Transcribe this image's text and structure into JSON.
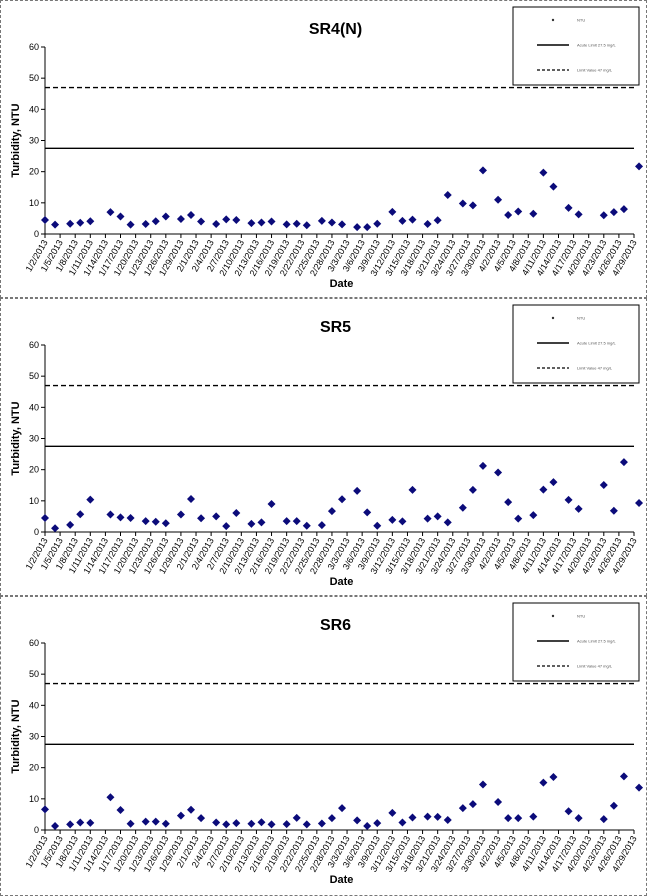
{
  "colors": {
    "marker": "#0b0b7a",
    "line": "#000000"
  },
  "chart_data": [
    {
      "type": "scatter",
      "title": "SR4(N)",
      "xlabel": "Date",
      "ylabel": "Turbidity, NTU",
      "ylim": [
        0,
        60
      ],
      "yticks": [
        0,
        10,
        20,
        30,
        40,
        50,
        60
      ],
      "xticklabels": [
        "1/2/2013",
        "1/5/2013",
        "1/8/2013",
        "1/11/2013",
        "1/14/2013",
        "1/17/2013",
        "1/20/2013",
        "1/23/2013",
        "1/26/2013",
        "1/29/2013",
        "2/1/2013",
        "2/4/2013",
        "2/7/2013",
        "2/10/2013",
        "2/13/2013",
        "2/16/2013",
        "2/19/2013",
        "2/22/2013",
        "2/25/2013",
        "2/28/2013",
        "3/3/2013",
        "3/6/2013",
        "3/9/2013",
        "3/12/2013",
        "3/15/2013",
        "3/18/2013",
        "3/21/2013",
        "3/24/2013",
        "3/27/2013",
        "3/30/2013",
        "4/2/2013",
        "4/5/2013",
        "4/8/2013",
        "4/11/2013",
        "4/14/2013",
        "4/17/2013",
        "4/20/2013",
        "4/23/2013",
        "4/26/2013",
        "4/29/2013"
      ],
      "legend_position": "top-right",
      "legend": [
        "NTU",
        "Acute Limit 27.5 mg/L",
        "Limit Value 47 mg/L"
      ],
      "reference_lines": [
        {
          "value": 27.5,
          "style": "solid"
        },
        {
          "value": 47,
          "style": "dashed"
        }
      ],
      "x": [
        "1/2/2013",
        "1/4/2013",
        "1/7/2013",
        "1/9/2013",
        "1/11/2013",
        "1/15/2013",
        "1/17/2013",
        "1/19/2013",
        "1/22/2013",
        "1/24/2013",
        "1/26/2013",
        "1/29/2013",
        "1/31/2013",
        "2/2/2013",
        "2/5/2013",
        "2/7/2013",
        "2/9/2013",
        "2/12/2013",
        "2/14/2013",
        "2/16/2013",
        "2/19/2013",
        "2/21/2013",
        "2/23/2013",
        "2/26/2013",
        "2/28/2013",
        "3/2/2013",
        "3/5/2013",
        "3/7/2013",
        "3/9/2013",
        "3/12/2013",
        "3/14/2013",
        "3/16/2013",
        "3/19/2013",
        "3/21/2013",
        "3/23/2013",
        "3/26/2013",
        "3/28/2013",
        "3/30/2013",
        "4/2/2013",
        "4/4/2013",
        "4/6/2013",
        "4/9/2013",
        "4/11/2013",
        "4/13/2013",
        "4/16/2013",
        "4/18/2013",
        "4/23/2013",
        "4/25/2013",
        "4/27/2013",
        "4/30/2013"
      ],
      "y": [
        4.5,
        3,
        3.3,
        3.6,
        4.1,
        7,
        5.6,
        3,
        3.2,
        4.1,
        5.6,
        4.8,
        6.1,
        4,
        3.2,
        4.7,
        4.5,
        3.5,
        3.7,
        4,
        3.1,
        3.3,
        2.8,
        4.2,
        3.7,
        3.1,
        2.2,
        2.2,
        3.3,
        7.1,
        4.2,
        4.6,
        3.2,
        4.4,
        12.5,
        9.8,
        9.2,
        20.4,
        11,
        6.1,
        7.2,
        6.5,
        19.7,
        15.2,
        8.4,
        6.3,
        6,
        7,
        8,
        21.7
      ]
    },
    {
      "type": "scatter",
      "title": "SR5",
      "xlabel": "Date",
      "ylabel": "Turbidity, NTU",
      "ylim": [
        0,
        60
      ],
      "yticks": [
        0,
        10,
        20,
        30,
        40,
        50,
        60
      ],
      "xticklabels": [
        "1/2/2013",
        "1/5/2013",
        "1/8/2013",
        "1/11/2013",
        "1/14/2013",
        "1/17/2013",
        "1/20/2013",
        "1/23/2013",
        "1/26/2013",
        "1/29/2013",
        "2/1/2013",
        "2/4/2013",
        "2/7/2013",
        "2/10/2013",
        "2/13/2013",
        "2/16/2013",
        "2/19/2013",
        "2/22/2013",
        "2/25/2013",
        "2/28/2013",
        "3/3/2013",
        "3/6/2013",
        "3/9/2013",
        "3/12/2013",
        "3/15/2013",
        "3/18/2013",
        "3/21/2013",
        "3/24/2013",
        "3/27/2013",
        "3/30/2013",
        "4/2/2013",
        "4/5/2013",
        "4/8/2013",
        "4/11/2013",
        "4/14/2013",
        "4/17/2013",
        "4/20/2013",
        "4/23/2013",
        "4/26/2013",
        "4/29/2013"
      ],
      "legend_position": "top-right",
      "legend": [
        "NTU",
        "Acute Limit 27.5 mg/L",
        "Limit Value 47 mg/L"
      ],
      "reference_lines": [
        {
          "value": 27.5,
          "style": "solid"
        },
        {
          "value": 47,
          "style": "dashed"
        }
      ],
      "x": [
        "1/2/2013",
        "1/4/2013",
        "1/7/2013",
        "1/9/2013",
        "1/11/2013",
        "1/15/2013",
        "1/17/2013",
        "1/19/2013",
        "1/22/2013",
        "1/24/2013",
        "1/26/2013",
        "1/29/2013",
        "1/31/2013",
        "2/2/2013",
        "2/5/2013",
        "2/7/2013",
        "2/9/2013",
        "2/12/2013",
        "2/14/2013",
        "2/16/2013",
        "2/19/2013",
        "2/21/2013",
        "2/23/2013",
        "2/26/2013",
        "2/28/2013",
        "3/2/2013",
        "3/5/2013",
        "3/7/2013",
        "3/9/2013",
        "3/12/2013",
        "3/14/2013",
        "3/16/2013",
        "3/19/2013",
        "3/21/2013",
        "3/23/2013",
        "3/26/2013",
        "3/28/2013",
        "3/30/2013",
        "4/2/2013",
        "4/4/2013",
        "4/6/2013",
        "4/9/2013",
        "4/11/2013",
        "4/13/2013",
        "4/16/2013",
        "4/18/2013",
        "4/23/2013",
        "4/25/2013",
        "4/27/2013",
        "4/30/2013"
      ],
      "y": [
        4.5,
        1.2,
        2.3,
        5.7,
        10.4,
        5.6,
        4.7,
        4.5,
        3.5,
        3.3,
        2.8,
        5.6,
        10.6,
        4.4,
        5,
        1.9,
        6.1,
        2.6,
        3.1,
        9,
        3.5,
        3.5,
        2,
        2.2,
        6.7,
        10.5,
        13.2,
        6.3,
        2,
        3.9,
        3.4,
        13.5,
        4.3,
        5,
        3.1,
        7.8,
        13.5,
        21.2,
        19.1,
        9.6,
        4.3,
        5.4,
        13.6,
        16,
        10.3,
        7.4,
        15.1,
        6.8,
        22.4,
        9.3
      ]
    },
    {
      "type": "scatter",
      "title": "SR6",
      "xlabel": "Date",
      "ylabel": "Turbidity, NTU",
      "ylim": [
        0,
        60
      ],
      "yticks": [
        0,
        10,
        20,
        30,
        40,
        50,
        60
      ],
      "xticklabels": [
        "1/2/2013",
        "1/5/2013",
        "1/8/2013",
        "1/11/2013",
        "1/14/2013",
        "1/17/2013",
        "1/20/2013",
        "1/23/2013",
        "1/26/2013",
        "1/29/2013",
        "2/1/2013",
        "2/4/2013",
        "2/7/2013",
        "2/10/2013",
        "2/13/2013",
        "2/16/2013",
        "2/19/2013",
        "2/22/2013",
        "2/25/2013",
        "2/28/2013",
        "3/3/2013",
        "3/6/2013",
        "3/9/2013",
        "3/12/2013",
        "3/15/2013",
        "3/18/2013",
        "3/21/2013",
        "3/24/2013",
        "3/27/2013",
        "3/30/2013",
        "4/2/2013",
        "4/5/2013",
        "4/8/2013",
        "4/11/2013",
        "4/14/2013",
        "4/17/2013",
        "4/20/2013",
        "4/23/2013",
        "4/26/2013",
        "4/29/2013"
      ],
      "legend_position": "top-right",
      "legend": [
        "NTU",
        "Acute Limit 27.5 mg/L",
        "Limit Value 47 mg/L"
      ],
      "reference_lines": [
        {
          "value": 27.5,
          "style": "solid"
        },
        {
          "value": 47,
          "style": "dashed"
        }
      ],
      "x": [
        "1/2/2013",
        "1/4/2013",
        "1/7/2013",
        "1/9/2013",
        "1/11/2013",
        "1/15/2013",
        "1/17/2013",
        "1/19/2013",
        "1/22/2013",
        "1/24/2013",
        "1/26/2013",
        "1/29/2013",
        "1/31/2013",
        "2/2/2013",
        "2/5/2013",
        "2/7/2013",
        "2/9/2013",
        "2/12/2013",
        "2/14/2013",
        "2/16/2013",
        "2/19/2013",
        "2/21/2013",
        "2/23/2013",
        "2/26/2013",
        "2/28/2013",
        "3/2/2013",
        "3/5/2013",
        "3/7/2013",
        "3/9/2013",
        "3/12/2013",
        "3/14/2013",
        "3/16/2013",
        "3/19/2013",
        "3/21/2013",
        "3/23/2013",
        "3/26/2013",
        "3/28/2013",
        "3/30/2013",
        "4/2/2013",
        "4/4/2013",
        "4/6/2013",
        "4/9/2013",
        "4/11/2013",
        "4/13/2013",
        "4/16/2013",
        "4/18/2013",
        "4/23/2013",
        "4/25/2013",
        "4/27/2013",
        "4/30/2013"
      ],
      "y": [
        6.6,
        1.3,
        1.8,
        2.4,
        2.3,
        10.5,
        6.4,
        2,
        2.7,
        2.7,
        2,
        4.6,
        6.5,
        3.8,
        2.4,
        1.8,
        2.2,
        2,
        2.5,
        1.8,
        1.9,
        3.9,
        1.8,
        2.1,
        3.8,
        7,
        3.1,
        1.3,
        2.2,
        5.5,
        2.4,
        4,
        4.3,
        4.2,
        3.2,
        7,
        8.3,
        14.6,
        9,
        3.8,
        3.8,
        4.3,
        15.2,
        17,
        6,
        3.8,
        3.5,
        7.8,
        17.2,
        13.6
      ]
    }
  ]
}
